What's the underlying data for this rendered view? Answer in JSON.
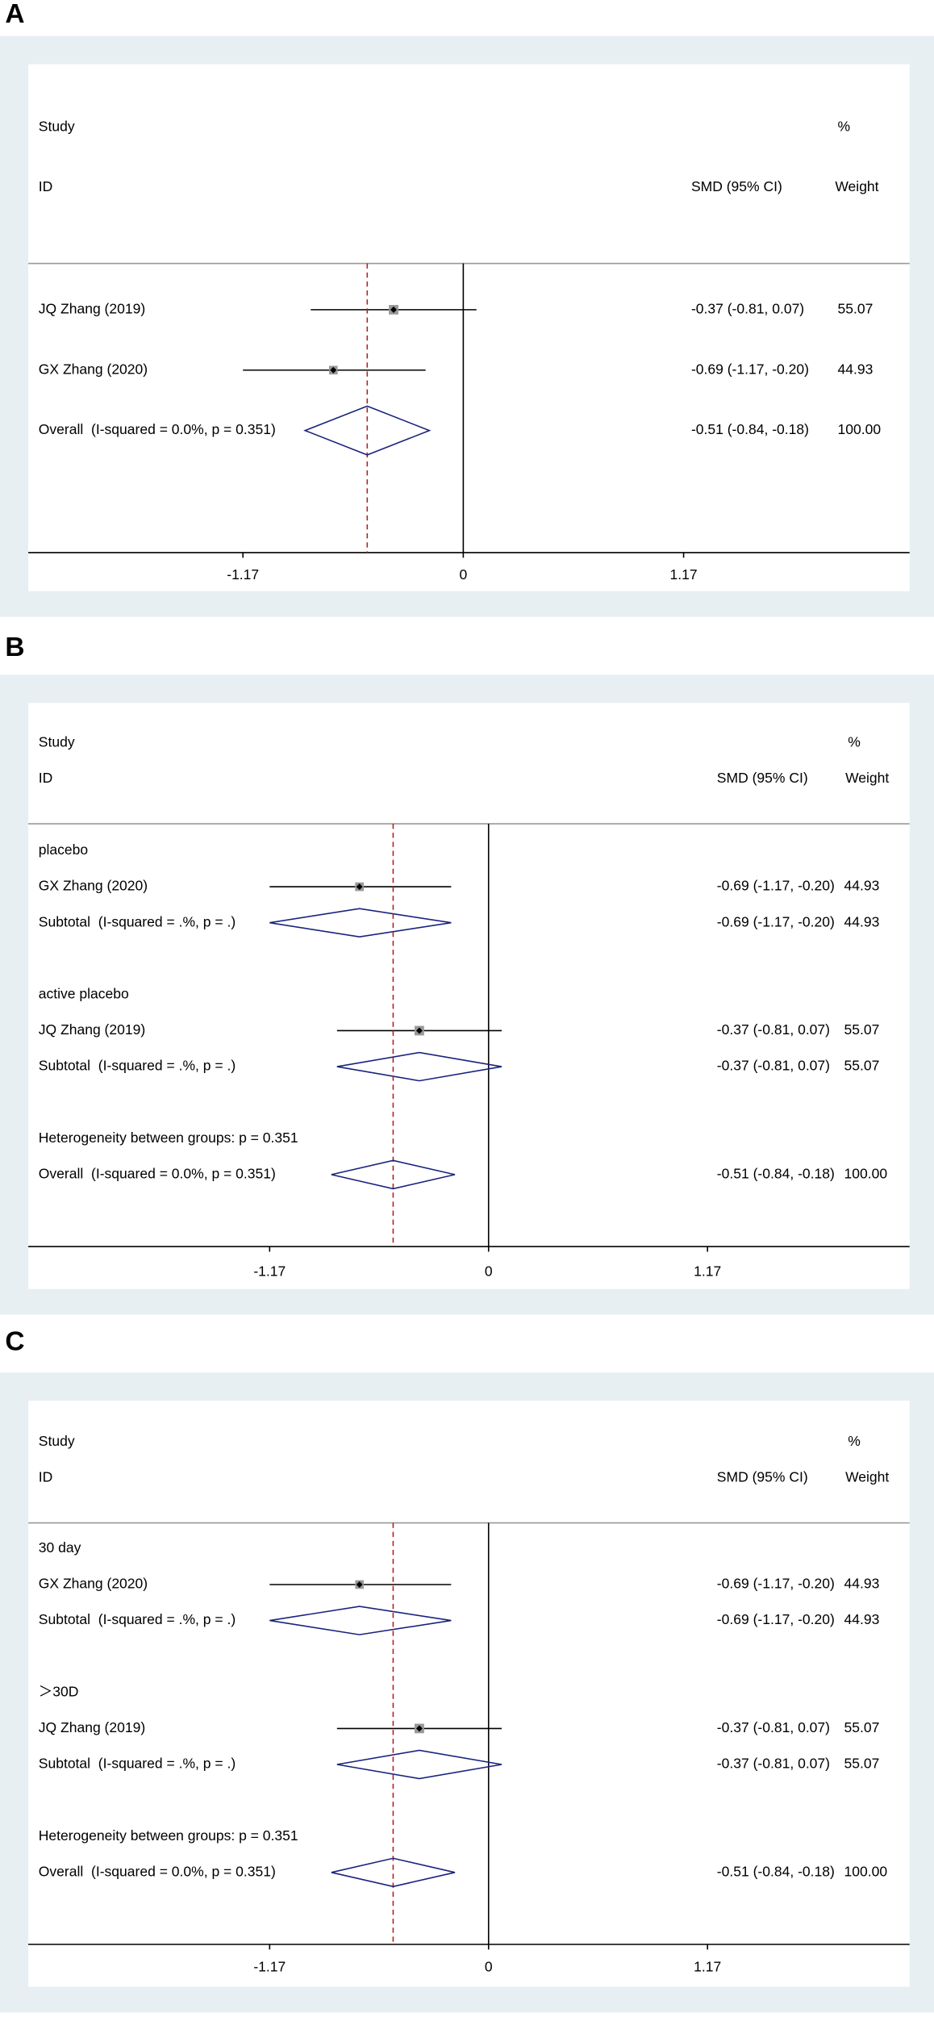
{
  "chart_data": [
    {
      "type": "forest",
      "panel_label": "A",
      "header": {
        "study": "Study",
        "id": "ID",
        "effect": "SMD (95% CI)",
        "weight_pct": "%",
        "weight": "Weight"
      },
      "rows": [
        {
          "kind": "study",
          "label": "JQ Zhang (2019)",
          "estimate": -0.37,
          "lower": -0.81,
          "upper": 0.07,
          "ci_label": "-0.37 (-0.81, 0.07)",
          "weight": 55.07
        },
        {
          "kind": "study",
          "label": "GX Zhang (2020)",
          "estimate": -0.69,
          "lower": -1.17,
          "upper": -0.2,
          "ci_label": "-0.69 (-1.17, -0.20)",
          "weight": 44.93
        },
        {
          "kind": "overall",
          "label": "Overall  (I-squared = 0.0%, p = 0.351)",
          "estimate": -0.51,
          "lower": -0.84,
          "upper": -0.18,
          "ci_label": "-0.51 (-0.84, -0.18)",
          "weight": 100,
          "weight_label": "100.00"
        }
      ],
      "xlim": [
        -2.31,
        2.37
      ],
      "xticks": [
        -1.17,
        0,
        1.17
      ]
    },
    {
      "type": "forest",
      "panel_label": "B",
      "header": {
        "study": "Study",
        "id": "ID",
        "effect": "SMD (95% CI)",
        "weight_pct": "%",
        "weight": "Weight"
      },
      "rows": [
        {
          "kind": "group",
          "label": "placebo"
        },
        {
          "kind": "study",
          "label": "GX Zhang (2020)",
          "estimate": -0.69,
          "lower": -1.17,
          "upper": -0.2,
          "ci_label": "-0.69 (-1.17, -0.20)",
          "weight": 44.93
        },
        {
          "kind": "subtotal",
          "label": "Subtotal  (I-squared = .%, p = .)",
          "estimate": -0.69,
          "lower": -1.17,
          "upper": -0.2,
          "ci_label": "-0.69 (-1.17, -0.20)",
          "weight": 44.93
        },
        {
          "kind": "group",
          "label": "active placebo"
        },
        {
          "kind": "study",
          "label": "JQ Zhang (2019)",
          "estimate": -0.37,
          "lower": -0.81,
          "upper": 0.07,
          "ci_label": "-0.37 (-0.81, 0.07)",
          "weight": 55.07
        },
        {
          "kind": "subtotal",
          "label": "Subtotal  (I-squared = .%, p = .)",
          "estimate": -0.37,
          "lower": -0.81,
          "upper": 0.07,
          "ci_label": "-0.37 (-0.81, 0.07)",
          "weight": 55.07
        },
        {
          "kind": "note",
          "label": "Heterogeneity between groups: p = 0.351"
        },
        {
          "kind": "overall",
          "label": "Overall  (I-squared = 0.0%, p = 0.351)",
          "estimate": -0.51,
          "lower": -0.84,
          "upper": -0.18,
          "ci_label": "-0.51 (-0.84, -0.18)",
          "weight": 100,
          "weight_label": "100.00"
        }
      ],
      "xlim": [
        -2.46,
        2.25
      ],
      "xticks": [
        -1.17,
        0,
        1.17
      ]
    },
    {
      "type": "forest",
      "panel_label": "C",
      "header": {
        "study": "Study",
        "id": "ID",
        "effect": "SMD (95% CI)",
        "weight_pct": "%",
        "weight": "Weight"
      },
      "rows": [
        {
          "kind": "group",
          "label": "30 day"
        },
        {
          "kind": "study",
          "label": "GX Zhang (2020)",
          "estimate": -0.69,
          "lower": -1.17,
          "upper": -0.2,
          "ci_label": "-0.69 (-1.17, -0.20)",
          "weight": 44.93
        },
        {
          "kind": "subtotal",
          "label": "Subtotal  (I-squared = .%, p = .)",
          "estimate": -0.69,
          "lower": -1.17,
          "upper": -0.2,
          "ci_label": "-0.69 (-1.17, -0.20)",
          "weight": 44.93
        },
        {
          "kind": "group",
          "label": "＞30D"
        },
        {
          "kind": "study",
          "label": "JQ Zhang (2019)",
          "estimate": -0.37,
          "lower": -0.81,
          "upper": 0.07,
          "ci_label": "-0.37 (-0.81, 0.07)",
          "weight": 55.07
        },
        {
          "kind": "subtotal",
          "label": "Subtotal  (I-squared = .%, p = .)",
          "estimate": -0.37,
          "lower": -0.81,
          "upper": 0.07,
          "ci_label": "-0.37 (-0.81, 0.07)",
          "weight": 55.07
        },
        {
          "kind": "note",
          "label": "Heterogeneity between groups: p = 0.351"
        },
        {
          "kind": "overall",
          "label": "Overall  (I-squared = 0.0%, p = 0.351)",
          "estimate": -0.51,
          "lower": -0.84,
          "upper": -0.18,
          "ci_label": "-0.51 (-0.84, -0.18)",
          "weight": 100,
          "weight_label": "100.00"
        }
      ],
      "xlim": [
        -2.46,
        2.25
      ],
      "xticks": [
        -1.17,
        0,
        1.17
      ]
    }
  ]
}
